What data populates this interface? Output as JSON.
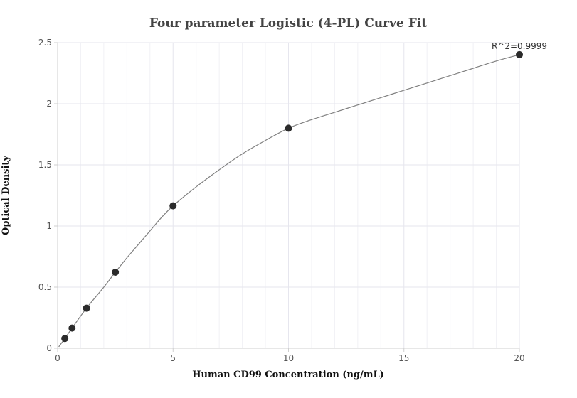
{
  "chart_data": {
    "type": "scatter",
    "title": "Four parameter Logistic (4-PL) Curve Fit",
    "xlabel": "Human CD99 Concentration (ng/mL)",
    "ylabel": "Optical Density",
    "xlim": [
      0,
      20
    ],
    "ylim": [
      0,
      2.5
    ],
    "x_ticks": [
      0,
      5,
      10,
      15,
      20
    ],
    "y_ticks": [
      0,
      0.5,
      1,
      1.5,
      2,
      2.5
    ],
    "x_tick_labels": [
      "0",
      "5",
      "10",
      "15",
      "20"
    ],
    "y_tick_labels": [
      "0",
      "0.5",
      "1",
      "1.5",
      "2",
      "2.5"
    ],
    "grid": true,
    "points": [
      {
        "x": 0.3125,
        "y": 0.08
      },
      {
        "x": 0.625,
        "y": 0.165
      },
      {
        "x": 1.25,
        "y": 0.328
      },
      {
        "x": 2.5,
        "y": 0.622
      },
      {
        "x": 5,
        "y": 1.165
      },
      {
        "x": 10,
        "y": 1.8
      },
      {
        "x": 20,
        "y": 2.402
      }
    ],
    "fit_curve": {
      "model": "4-PL",
      "points": [
        [
          0.05,
          0.012
        ],
        [
          0.3125,
          0.08
        ],
        [
          0.625,
          0.165
        ],
        [
          1.25,
          0.328
        ],
        [
          2.0,
          0.5
        ],
        [
          2.5,
          0.622
        ],
        [
          3.0,
          0.74
        ],
        [
          3.5,
          0.85
        ],
        [
          4.0,
          0.96
        ],
        [
          4.5,
          1.07
        ],
        [
          5,
          1.165
        ],
        [
          6,
          1.32
        ],
        [
          7,
          1.46
        ],
        [
          8,
          1.59
        ],
        [
          9,
          1.7
        ],
        [
          10,
          1.8
        ],
        [
          11,
          1.87
        ],
        [
          12,
          1.93
        ],
        [
          13,
          1.99
        ],
        [
          14,
          2.05
        ],
        [
          15,
          2.11
        ],
        [
          16,
          2.17
        ],
        [
          17,
          2.23
        ],
        [
          18,
          2.29
        ],
        [
          19,
          2.35
        ],
        [
          20,
          2.402
        ]
      ]
    },
    "annotation": "R^2=0.9999",
    "colors": {
      "marker": "#2b2b2b",
      "curve": "#808080",
      "grid": "#e6e6ee",
      "axis": "#cfcfcf"
    }
  }
}
